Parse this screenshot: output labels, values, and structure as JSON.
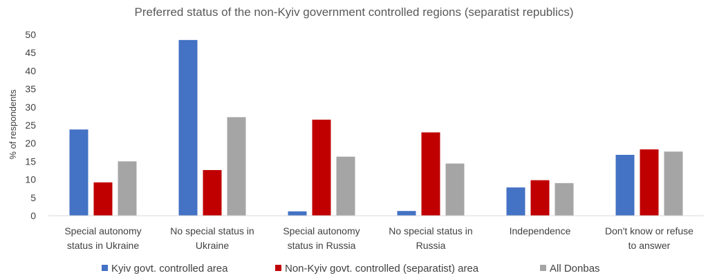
{
  "chart_data": {
    "type": "bar",
    "title": "Preferred status of the non-Kyiv government controlled regions (separatist republics)",
    "ylabel": "% of respondents",
    "xlabel": "",
    "ylim": [
      0,
      50
    ],
    "yticks": [
      0,
      5,
      10,
      15,
      20,
      25,
      30,
      35,
      40,
      45,
      50
    ],
    "grid": false,
    "legend": "bottom",
    "categories": [
      [
        "Special autonomy",
        "status in Ukraine"
      ],
      [
        "No special status in",
        "Ukraine"
      ],
      [
        "Special autonomy",
        "status in Russia"
      ],
      [
        "No special  status in",
        "Russia"
      ],
      [
        "Independence"
      ],
      [
        "Don't know or refuse",
        "to answer"
      ]
    ],
    "series": [
      {
        "name": "Kyiv govt. controlled area",
        "color": "#4472C4",
        "values": [
          23.8,
          48.5,
          1.2,
          1.3,
          7.8,
          16.8
        ]
      },
      {
        "name": "Non-Kyiv govt. controlled (separatist) area",
        "color": "#C00000",
        "values": [
          9.2,
          12.6,
          26.5,
          23.0,
          9.8,
          18.3
        ]
      },
      {
        "name": "All Donbas",
        "color": "#A5A5A5",
        "values": [
          15.0,
          27.2,
          16.3,
          14.4,
          9.0,
          17.7
        ]
      }
    ]
  }
}
